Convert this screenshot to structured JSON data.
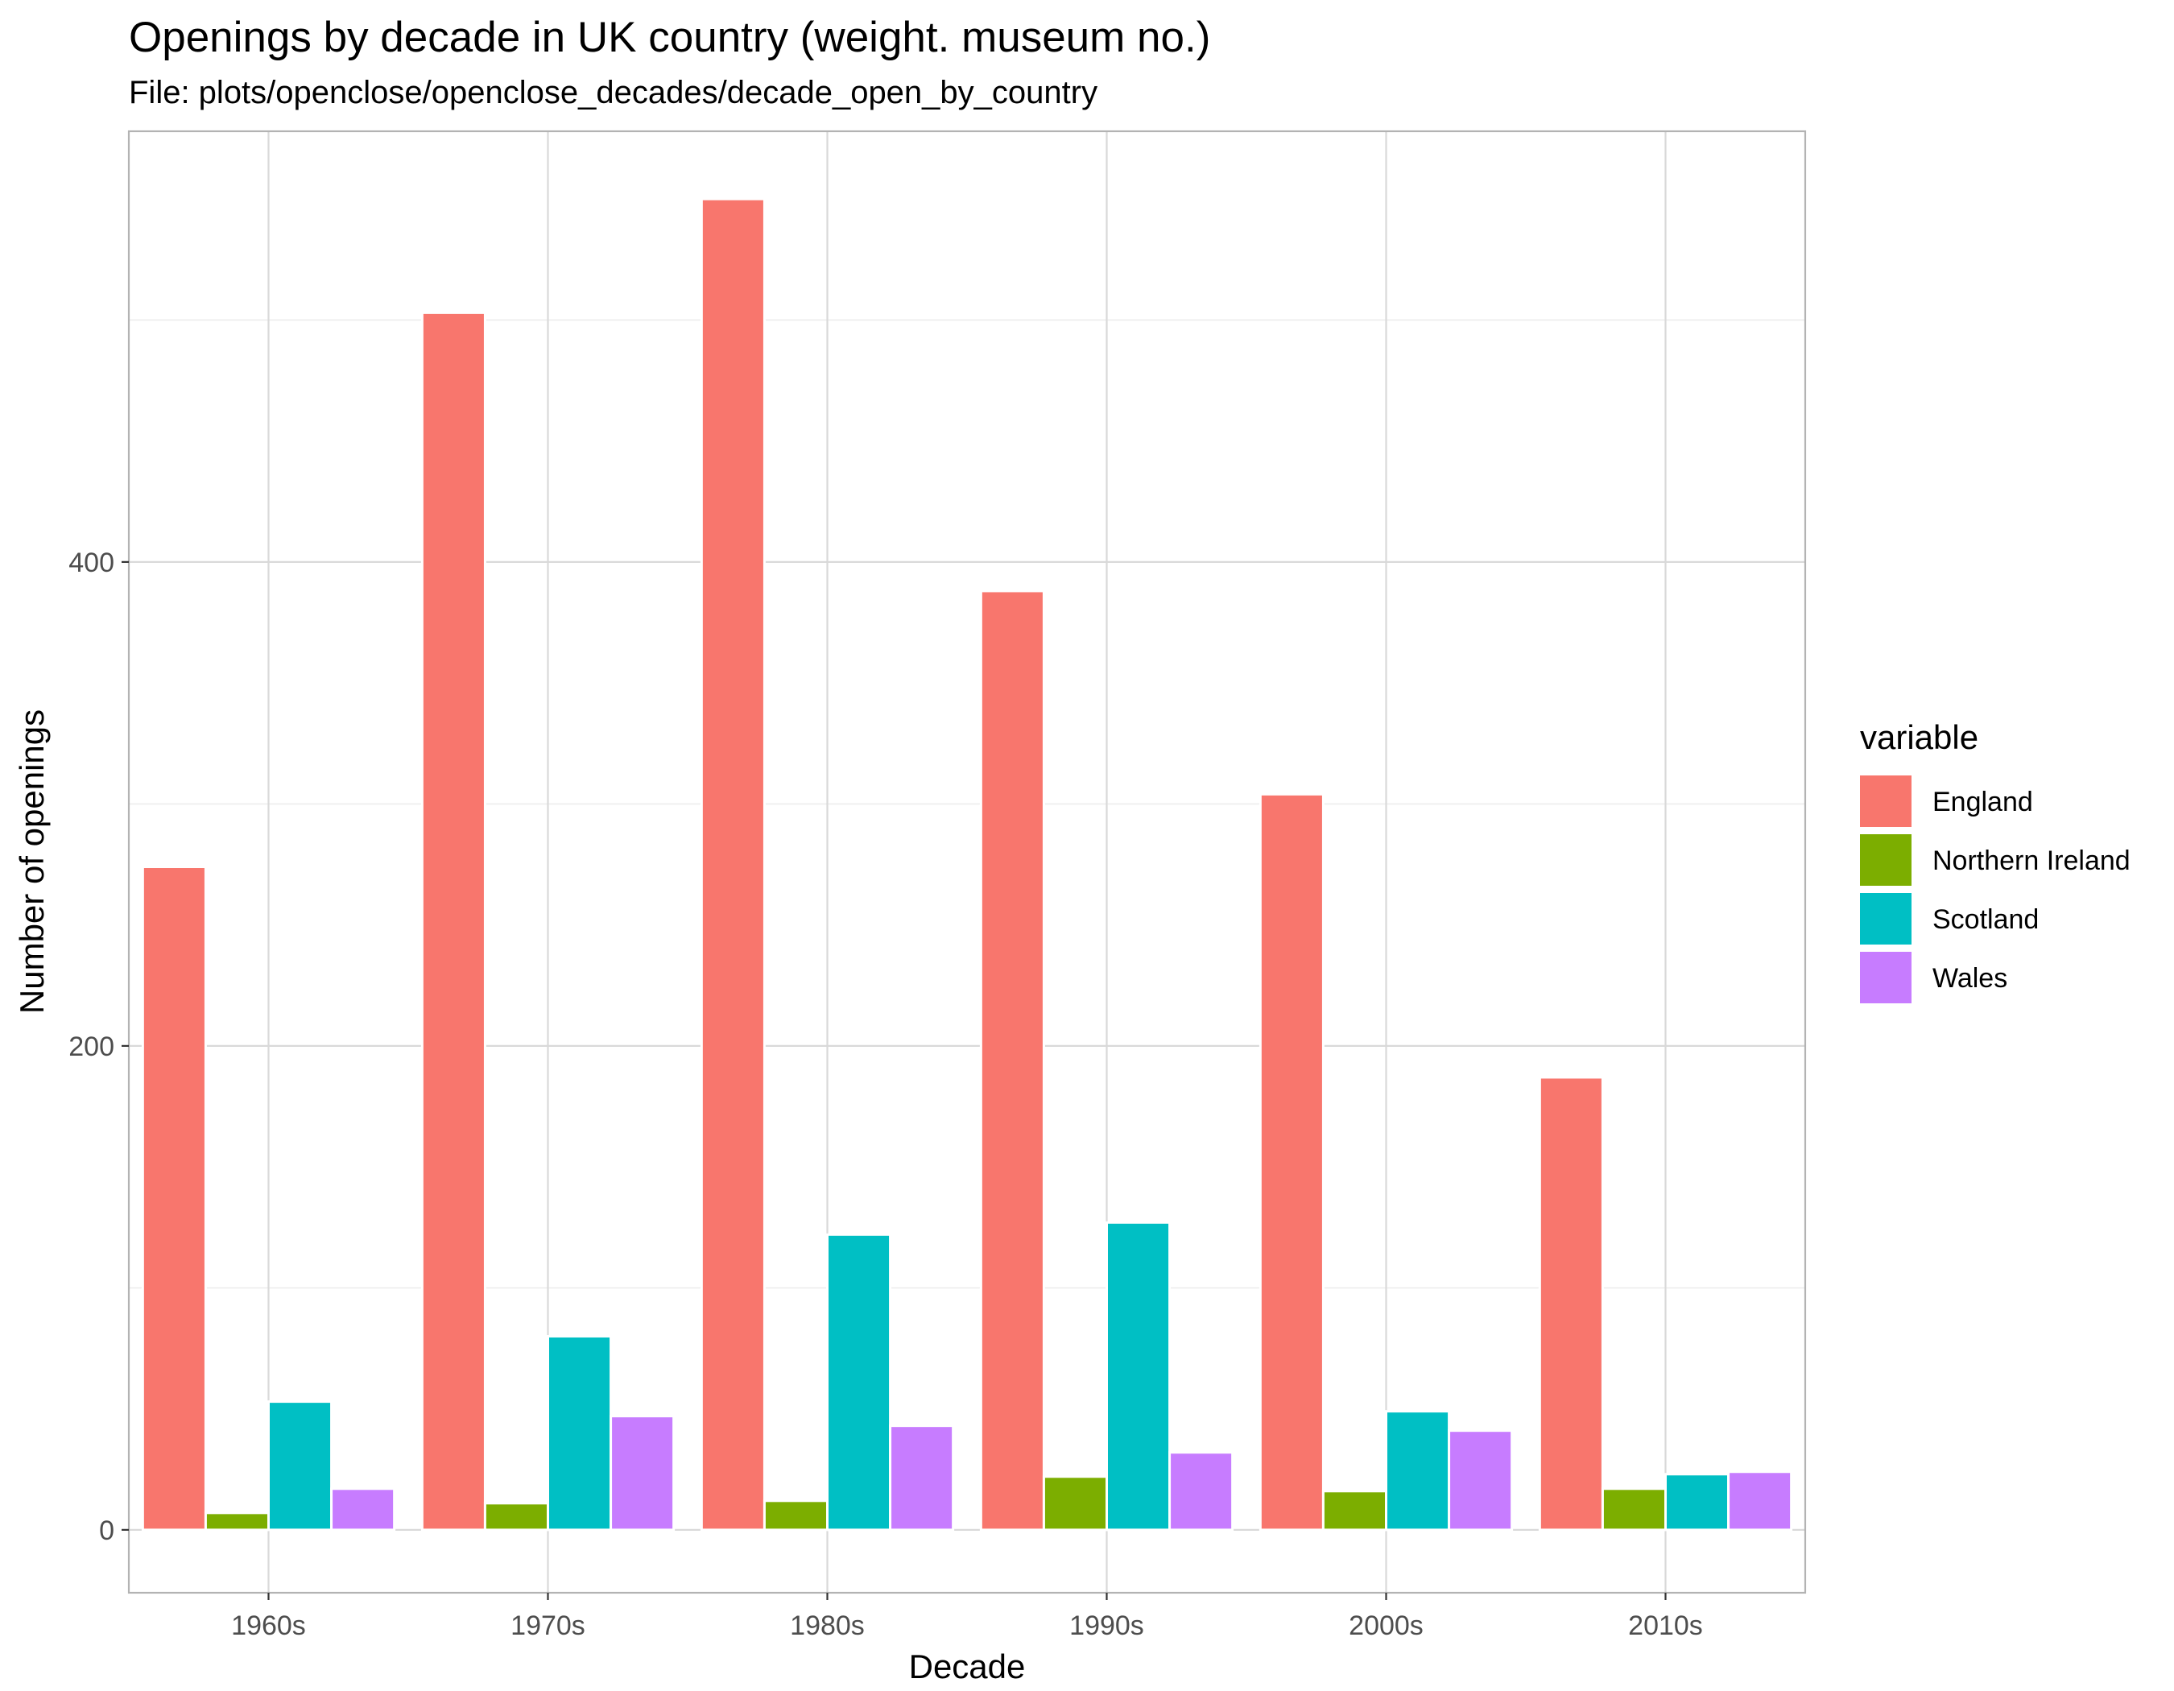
{
  "chart_data": {
    "type": "bar",
    "title": "Openings by decade in UK country (weight. museum no.)",
    "subtitle": "File: plots/openclose/openclose_decades/decade_open_by_country",
    "xlabel": "Decade",
    "ylabel": "Number of openings",
    "categories": [
      "1960s",
      "1970s",
      "1980s",
      "1990s",
      "2000s",
      "2010s"
    ],
    "series": [
      {
        "name": "England",
        "color": "#F8766D",
        "values": [
          274,
          503,
          550,
          388,
          304,
          187
        ]
      },
      {
        "name": "Northern Ireland",
        "color": "#7CAE00",
        "values": [
          7,
          11,
          12,
          22,
          16,
          17
        ]
      },
      {
        "name": "Scotland",
        "color": "#00BFC4",
        "values": [
          53,
          80,
          122,
          127,
          49,
          23
        ]
      },
      {
        "name": "Wales",
        "color": "#C77CFF",
        "values": [
          17,
          47,
          43,
          32,
          41,
          24
        ]
      }
    ],
    "ylim": [
      -26,
      578
    ],
    "yticks": [
      0,
      200,
      400
    ],
    "ygrid_minor": [
      100,
      300,
      500
    ],
    "grid": true,
    "legend": {
      "title": "variable",
      "position": "right"
    }
  }
}
